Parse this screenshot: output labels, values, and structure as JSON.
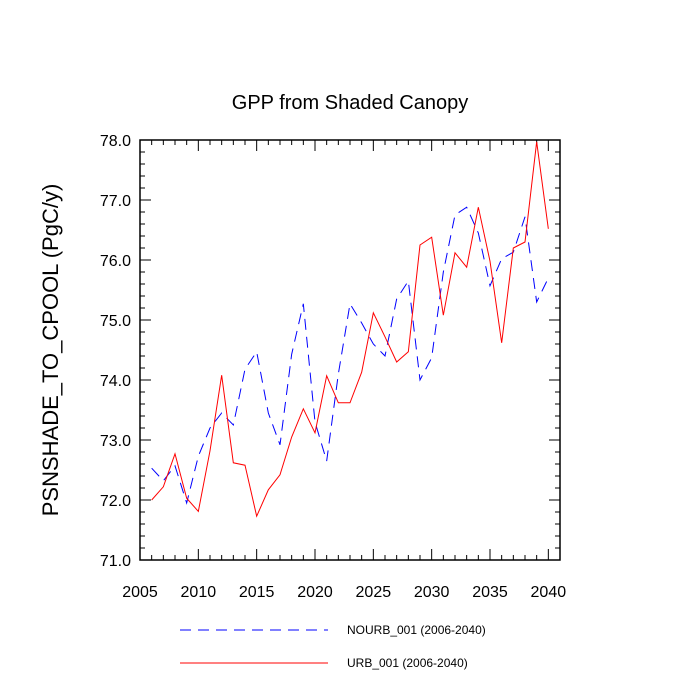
{
  "chart_data": {
    "type": "line",
    "title": "GPP from Shaded Canopy",
    "xlabel": "",
    "ylabel": "PSNSHADE_TO_CPOOL  (PgC/y)",
    "xlim": [
      2005,
      2041
    ],
    "ylim": [
      71.0,
      78.0
    ],
    "xticks": [
      2005,
      2010,
      2015,
      2020,
      2025,
      2030,
      2035,
      2040
    ],
    "yticks": [
      71.0,
      72.0,
      73.0,
      74.0,
      75.0,
      76.0,
      77.0,
      78.0
    ],
    "xtick_labels": [
      "2005",
      "2010",
      "2015",
      "2020",
      "2025",
      "2030",
      "2035",
      "2040"
    ],
    "ytick_labels": [
      "71.0",
      "72.0",
      "73.0",
      "74.0",
      "75.0",
      "76.0",
      "77.0",
      "78.0"
    ],
    "x": [
      2006,
      2007,
      2008,
      2009,
      2010,
      2011,
      2012,
      2013,
      2014,
      2015,
      2016,
      2017,
      2018,
      2019,
      2020,
      2021,
      2022,
      2023,
      2024,
      2025,
      2026,
      2027,
      2028,
      2029,
      2030,
      2031,
      2032,
      2033,
      2034,
      2035,
      2036,
      2037,
      2038,
      2039,
      2040
    ],
    "series": [
      {
        "name": "NOURB_001 (2006-2040)",
        "color": "#0000ff",
        "dash": "dashed",
        "values": [
          72.53,
          72.32,
          72.57,
          71.95,
          72.73,
          73.2,
          73.45,
          73.25,
          74.18,
          74.47,
          73.45,
          72.92,
          74.43,
          75.27,
          73.3,
          72.65,
          74.1,
          75.27,
          74.95,
          74.6,
          74.4,
          75.35,
          75.65,
          74.0,
          74.37,
          75.8,
          76.75,
          76.88,
          76.45,
          75.57,
          76.02,
          76.13,
          76.72,
          75.3,
          75.7
        ]
      },
      {
        "name": "URB_001 (2006-2040)",
        "color": "#ff0000",
        "dash": "solid",
        "values": [
          72.0,
          72.22,
          72.77,
          72.03,
          71.81,
          72.82,
          74.08,
          72.62,
          72.58,
          71.73,
          72.17,
          72.42,
          73.05,
          73.52,
          73.12,
          74.07,
          73.62,
          73.62,
          74.13,
          75.12,
          74.72,
          74.3,
          74.47,
          76.25,
          76.38,
          75.08,
          76.12,
          75.88,
          76.88,
          75.98,
          74.62,
          76.2,
          76.3,
          77.97,
          76.52
        ]
      }
    ],
    "legend_position": "bottom"
  }
}
